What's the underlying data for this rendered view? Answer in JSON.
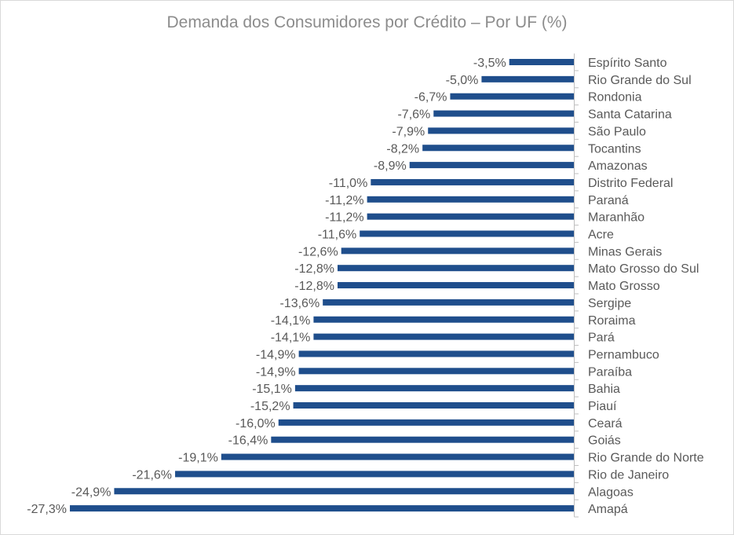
{
  "chart_data": {
    "type": "bar",
    "orientation": "horizontal",
    "title": "Demanda dos Consumidores por Crédito – Por UF (%)",
    "categories": [
      "Espírito Santo",
      "Rio Grande do Sul",
      "Rondonia",
      "Santa Catarina",
      "São Paulo",
      "Tocantins",
      "Amazonas",
      "Distrito Federal",
      "Paraná",
      "Maranhão",
      "Acre",
      "Minas Gerais",
      "Mato Grosso do Sul",
      "Mato Grosso",
      "Sergipe",
      "Roraima",
      "Pará",
      "Pernambuco",
      "Paraíba",
      "Bahia",
      "Piauí",
      "Ceará",
      "Goiás",
      "Rio Grande do Norte",
      "Rio de Janeiro",
      "Alagoas",
      "Amapá"
    ],
    "values": [
      -3.5,
      -5.0,
      -6.7,
      -7.6,
      -7.9,
      -8.2,
      -8.9,
      -11.0,
      -11.2,
      -11.2,
      -11.6,
      -12.6,
      -12.8,
      -12.8,
      -13.6,
      -14.1,
      -14.1,
      -14.9,
      -14.9,
      -15.1,
      -15.2,
      -16.0,
      -16.4,
      -19.1,
      -21.6,
      -24.9,
      -27.3
    ],
    "value_labels": [
      "-3,5%",
      "-5,0%",
      "-6,7%",
      "-7,6%",
      "-7,9%",
      "-8,2%",
      "-8,9%",
      "-11,0%",
      "-11,2%",
      "-11,2%",
      "-11,6%",
      "-12,6%",
      "-12,8%",
      "-12,8%",
      "-13,6%",
      "-14,1%",
      "-14,1%",
      "-14,9%",
      "-14,9%",
      "-15,1%",
      "-15,2%",
      "-16,0%",
      "-16,4%",
      "-19,1%",
      "-21,6%",
      "-24,9%",
      "-27,3%"
    ],
    "unit": "%",
    "xlim": [
      -27.3,
      0
    ],
    "grid": false,
    "legend": "none",
    "colors": {
      "bar": "#1f4e8c",
      "axis": "#bfbfbf",
      "text": "#595959",
      "title": "#8c8c8c"
    }
  }
}
